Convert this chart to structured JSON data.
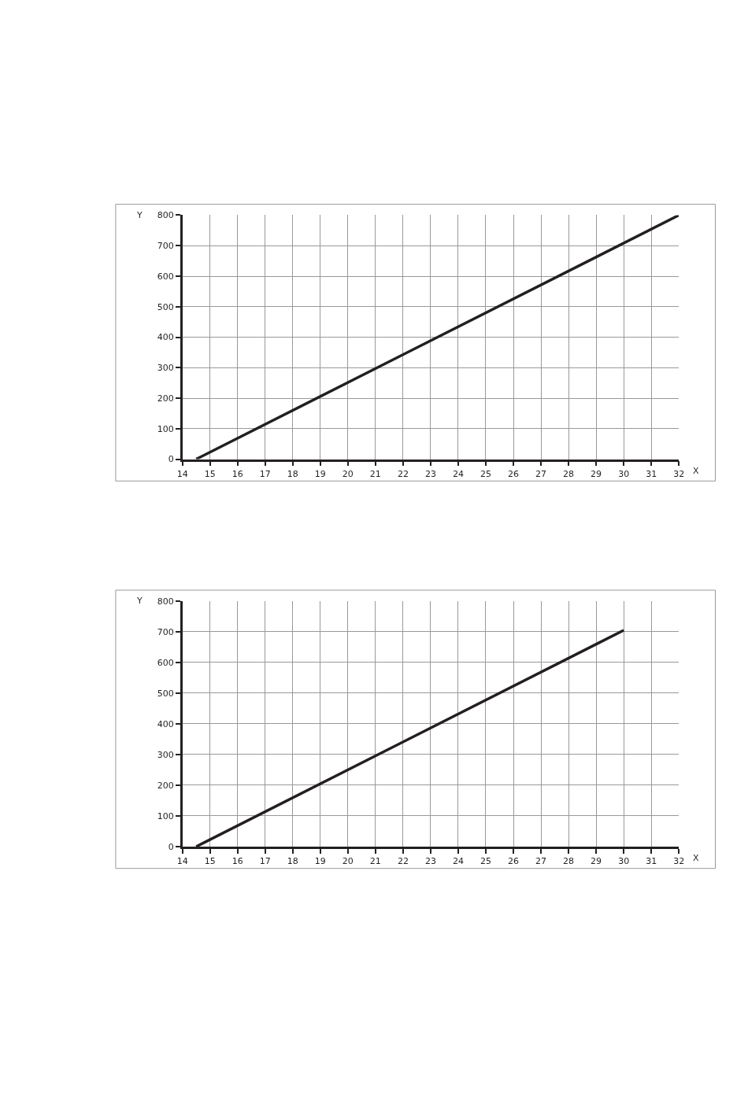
{
  "chart_data": [
    {
      "type": "line",
      "xlabel": "X",
      "ylabel": "Y",
      "xlim": [
        14,
        32
      ],
      "ylim": [
        0,
        800
      ],
      "xticks": [
        14,
        15,
        16,
        17,
        18,
        19,
        20,
        21,
        22,
        23,
        24,
        25,
        26,
        27,
        28,
        29,
        30,
        31,
        32
      ],
      "yticks": [
        0,
        100,
        200,
        300,
        400,
        500,
        600,
        700,
        800
      ],
      "grid": true,
      "marker": "none",
      "line_style": "solid",
      "series": [
        {
          "color": "#231f20",
          "x": [
            14.5,
            32
          ],
          "values": [
            0,
            800
          ]
        }
      ]
    },
    {
      "type": "line",
      "xlabel": "X",
      "ylabel": "Y",
      "xlim": [
        14,
        32
      ],
      "ylim": [
        0,
        800
      ],
      "xticks": [
        14,
        15,
        16,
        17,
        18,
        19,
        20,
        21,
        22,
        23,
        24,
        25,
        26,
        27,
        28,
        29,
        30,
        31,
        32
      ],
      "yticks": [
        0,
        100,
        200,
        300,
        400,
        500,
        600,
        700,
        800
      ],
      "grid": true,
      "marker": "none",
      "line_style": "solid",
      "series": [
        {
          "color": "#231f20",
          "x": [
            14.5,
            30
          ],
          "values": [
            0,
            705
          ]
        }
      ]
    }
  ]
}
